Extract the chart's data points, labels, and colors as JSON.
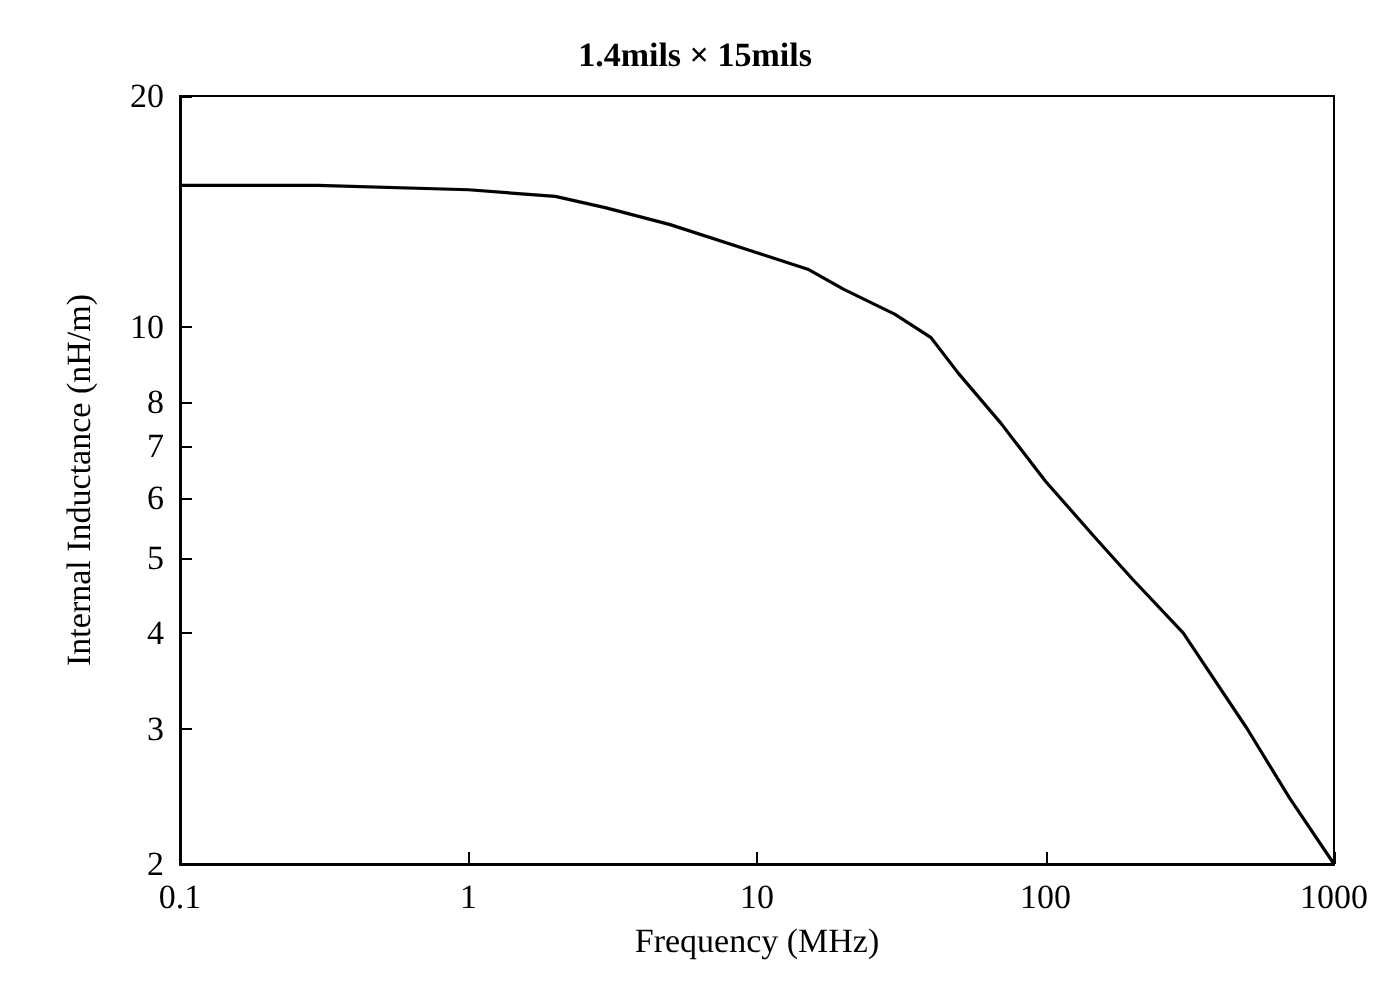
{
  "chart_data": {
    "type": "line",
    "title": "1.4mils × 15mils",
    "xlabel": "Frequency (MHz)",
    "ylabel": "Internal Inductance (nH/m)",
    "log": "xy",
    "grid": false,
    "marker": "none",
    "line_style": "solid",
    "xlim": [
      0.1,
      1000
    ],
    "xticks": [
      0.1,
      1,
      10,
      100,
      1000
    ],
    "ylim": [
      2,
      20
    ],
    "yticks": [
      2,
      3,
      4,
      5,
      6,
      7,
      8,
      10,
      20
    ],
    "series": [
      {
        "color": "#000000",
        "x": [
          0.1,
          0.3,
          1,
          2,
          3,
          5,
          10,
          15,
          20,
          30,
          40,
          50,
          70,
          100,
          150,
          200,
          300,
          500,
          700,
          1000
        ],
        "values": [
          15.3,
          15.3,
          15.1,
          14.8,
          14.3,
          13.6,
          12.5,
          11.9,
          11.2,
          10.4,
          9.7,
          8.7,
          7.5,
          6.3,
          5.3,
          4.7,
          4.0,
          3.0,
          2.44,
          2.0
        ]
      }
    ]
  }
}
